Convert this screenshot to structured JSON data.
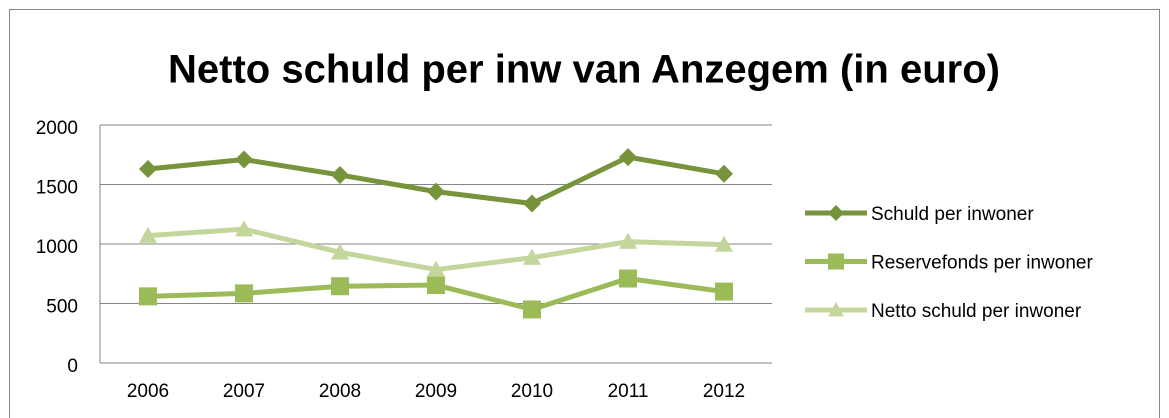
{
  "chart_data": {
    "type": "line",
    "title": "Netto schuld per inw van Anzegem (in euro)",
    "categories": [
      "2006",
      "2007",
      "2008",
      "2009",
      "2010",
      "2011",
      "2012"
    ],
    "series": [
      {
        "name": "Schuld per inwoner",
        "color": "#77933c",
        "marker": "diamond",
        "values": [
          1630,
          1710,
          1580,
          1440,
          1340,
          1730,
          1590
        ]
      },
      {
        "name": "Reservefonds per inwoner",
        "color": "#9bbb59",
        "marker": "square",
        "values": [
          560,
          585,
          645,
          655,
          450,
          710,
          600
        ]
      },
      {
        "name": "Netto schuld per inwoner",
        "color": "#c3d69b",
        "marker": "triangle",
        "values": [
          1070,
          1125,
          930,
          785,
          885,
          1020,
          995
        ]
      }
    ],
    "ylim": [
      0,
      2000
    ],
    "yticks": [
      0,
      500,
      1000,
      1500,
      2000
    ],
    "grid": true,
    "legend": "right"
  }
}
